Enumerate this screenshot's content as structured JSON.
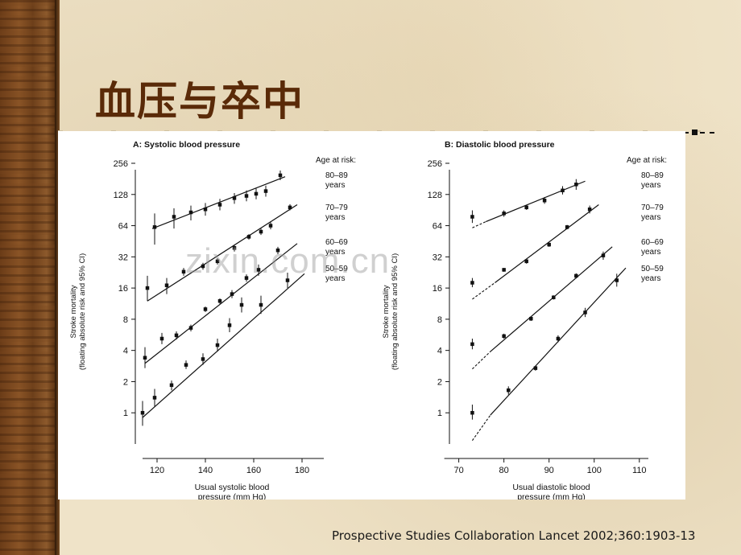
{
  "slide": {
    "title": "血压与卒中",
    "citation": "Prospective Studies Collaboration Lancet 2002;360:1903-13",
    "watermark": "zixin.com.cn",
    "colors": {
      "title": "#5a2a08",
      "background": "#efe3c8",
      "wood": "#7a4a20"
    }
  },
  "chart_data": [
    {
      "type": "scatter",
      "title": "A: Systolic blood pressure",
      "xlabel": "Usual systolic blood pressure (mm Hg)",
      "xlabel_lines": [
        "Usual systolic blood",
        "pressure (mm Hg)"
      ],
      "ylabel_lines": [
        "Stroke mortality",
        "(floating absolute risk and 95% CI)"
      ],
      "y_scale": "log2",
      "xlim": [
        113,
        189
      ],
      "ylim": [
        0.5,
        256
      ],
      "xticks": [
        120,
        140,
        160,
        180
      ],
      "yticks": [
        1,
        2,
        4,
        8,
        16,
        32,
        64,
        128,
        256
      ],
      "legend_title": "Age at risk:",
      "series": [
        {
          "name": "80–89 years",
          "label_lines": [
            "80–89",
            "years"
          ],
          "points": [
            {
              "x": 119,
              "y": 62,
              "lo": 42,
              "hi": 84
            },
            {
              "x": 127,
              "y": 78,
              "lo": 60,
              "hi": 94
            },
            {
              "x": 134,
              "y": 86,
              "lo": 72,
              "hi": 100
            },
            {
              "x": 140,
              "y": 92,
              "lo": 80,
              "hi": 106
            },
            {
              "x": 146,
              "y": 102,
              "lo": 90,
              "hi": 116
            },
            {
              "x": 152,
              "y": 118,
              "lo": 104,
              "hi": 132
            },
            {
              "x": 157,
              "y": 124,
              "lo": 110,
              "hi": 140
            },
            {
              "x": 161,
              "y": 130,
              "lo": 115,
              "hi": 146
            },
            {
              "x": 165,
              "y": 138,
              "lo": 122,
              "hi": 156
            },
            {
              "x": 171,
              "y": 196,
              "lo": 176,
              "hi": 218
            }
          ],
          "fit": {
            "x1": 118,
            "y1": 60,
            "x2": 173,
            "y2": 190
          }
        },
        {
          "name": "70–79 years",
          "label_lines": [
            "70–79",
            "years"
          ],
          "points": [
            {
              "x": 116,
              "y": 16,
              "lo": 12,
              "hi": 21
            },
            {
              "x": 124,
              "y": 17,
              "lo": 14,
              "hi": 20
            },
            {
              "x": 131,
              "y": 23,
              "lo": 21,
              "hi": 25
            },
            {
              "x": 139,
              "y": 26,
              "lo": 24,
              "hi": 28
            },
            {
              "x": 145,
              "y": 29,
              "lo": 27,
              "hi": 31
            },
            {
              "x": 152,
              "y": 39,
              "lo": 36,
              "hi": 42
            },
            {
              "x": 158,
              "y": 50,
              "lo": 47,
              "hi": 53
            },
            {
              "x": 163,
              "y": 56,
              "lo": 52,
              "hi": 60
            },
            {
              "x": 167,
              "y": 64,
              "lo": 59,
              "hi": 69
            },
            {
              "x": 175,
              "y": 96,
              "lo": 90,
              "hi": 103
            }
          ],
          "fit": {
            "x1": 116,
            "y1": 12,
            "x2": 178,
            "y2": 102
          }
        },
        {
          "name": "60–69 years",
          "label_lines": [
            "60–69",
            "years"
          ],
          "points": [
            {
              "x": 115,
              "y": 3.4,
              "lo": 2.7,
              "hi": 4.3
            },
            {
              "x": 122,
              "y": 5.2,
              "lo": 4.6,
              "hi": 5.9
            },
            {
              "x": 128,
              "y": 5.6,
              "lo": 5.1,
              "hi": 6.1
            },
            {
              "x": 134,
              "y": 6.6,
              "lo": 6.1,
              "hi": 7.1
            },
            {
              "x": 140,
              "y": 10,
              "lo": 9.4,
              "hi": 10.6
            },
            {
              "x": 146,
              "y": 12,
              "lo": 11.3,
              "hi": 12.7
            },
            {
              "x": 151,
              "y": 14,
              "lo": 12.8,
              "hi": 15.3
            },
            {
              "x": 157,
              "y": 20,
              "lo": 18.4,
              "hi": 21.7
            },
            {
              "x": 162,
              "y": 24,
              "lo": 21,
              "hi": 27
            },
            {
              "x": 170,
              "y": 37,
              "lo": 34,
              "hi": 40
            }
          ],
          "fit": {
            "x1": 115,
            "y1": 3,
            "x2": 178,
            "y2": 43
          }
        },
        {
          "name": "50–59 years",
          "label_lines": [
            "50–59",
            "years"
          ],
          "points": [
            {
              "x": 114,
              "y": 1.0,
              "lo": 0.75,
              "hi": 1.3
            },
            {
              "x": 119,
              "y": 1.4,
              "lo": 1.15,
              "hi": 1.7
            },
            {
              "x": 126,
              "y": 1.85,
              "lo": 1.65,
              "hi": 2.05
            },
            {
              "x": 132,
              "y": 2.9,
              "lo": 2.65,
              "hi": 3.2
            },
            {
              "x": 139,
              "y": 3.3,
              "lo": 2.9,
              "hi": 3.75
            },
            {
              "x": 145,
              "y": 4.5,
              "lo": 3.9,
              "hi": 5.2
            },
            {
              "x": 150,
              "y": 7,
              "lo": 6.0,
              "hi": 8.2
            },
            {
              "x": 155,
              "y": 11,
              "lo": 9.3,
              "hi": 13
            },
            {
              "x": 163,
              "y": 11,
              "lo": 9.0,
              "hi": 13.5
            },
            {
              "x": 174,
              "y": 19,
              "lo": 16,
              "hi": 22.5
            }
          ],
          "fit": {
            "x1": 114,
            "y1": 0.9,
            "x2": 181,
            "y2": 22
          }
        }
      ]
    },
    {
      "type": "scatter",
      "title": "B: Diastolic blood pressure",
      "xlabel": "Usual diastolic blood pressure (mm Hg)",
      "xlabel_lines": [
        "Usual diastolic blood",
        "pressure (mm Hg)"
      ],
      "ylabel_lines": [
        "Stroke mortality",
        "(floating absolute risk and 95% CI)"
      ],
      "y_scale": "log2",
      "xlim": [
        69,
        112
      ],
      "ylim": [
        0.5,
        256
      ],
      "xticks": [
        70,
        80,
        90,
        100,
        110
      ],
      "yticks": [
        1,
        2,
        4,
        8,
        16,
        32,
        64,
        128,
        256
      ],
      "legend_title": "Age at risk:",
      "series": [
        {
          "name": "80–89 years",
          "label_lines": [
            "80–89",
            "years"
          ],
          "points": [
            {
              "x": 73,
              "y": 78,
              "lo": 68,
              "hi": 90
            },
            {
              "x": 80,
              "y": 84,
              "lo": 78,
              "hi": 90
            },
            {
              "x": 85,
              "y": 96,
              "lo": 91,
              "hi": 101
            },
            {
              "x": 89,
              "y": 112,
              "lo": 104,
              "hi": 121
            },
            {
              "x": 93,
              "y": 140,
              "lo": 128,
              "hi": 154
            },
            {
              "x": 96,
              "y": 160,
              "lo": 142,
              "hi": 180
            }
          ],
          "fit": {
            "x1": 76,
            "y1": 70,
            "x2": 98,
            "y2": 172
          },
          "dash_to": {
            "x": 73,
            "y": 61
          }
        },
        {
          "name": "70–79 years",
          "label_lines": [
            "70–79",
            "years"
          ],
          "points": [
            {
              "x": 73,
              "y": 18,
              "lo": 16.3,
              "hi": 20
            },
            {
              "x": 80,
              "y": 24,
              "lo": 23,
              "hi": 25
            },
            {
              "x": 85,
              "y": 29,
              "lo": 27.5,
              "hi": 30.5
            },
            {
              "x": 90,
              "y": 42,
              "lo": 40,
              "hi": 44
            },
            {
              "x": 94,
              "y": 62,
              "lo": 59,
              "hi": 65
            },
            {
              "x": 99,
              "y": 92,
              "lo": 84,
              "hi": 100
            }
          ],
          "fit": {
            "x1": 78,
            "y1": 18,
            "x2": 101,
            "y2": 102
          },
          "dash_to": {
            "x": 73,
            "y": 12.5
          }
        },
        {
          "name": "60–69 years",
          "label_lines": [
            "60–69",
            "years"
          ],
          "points": [
            {
              "x": 73,
              "y": 4.6,
              "lo": 4.1,
              "hi": 5.2
            },
            {
              "x": 80,
              "y": 5.5,
              "lo": 5.2,
              "hi": 5.8
            },
            {
              "x": 86,
              "y": 8.1,
              "lo": 7.7,
              "hi": 8.5
            },
            {
              "x": 91,
              "y": 13,
              "lo": 12.4,
              "hi": 13.6
            },
            {
              "x": 96,
              "y": 21,
              "lo": 19.8,
              "hi": 22.2
            },
            {
              "x": 102,
              "y": 33,
              "lo": 30,
              "hi": 36
            }
          ],
          "fit": {
            "x1": 77,
            "y1": 3.9,
            "x2": 104,
            "y2": 40
          },
          "dash_to": {
            "x": 73,
            "y": 2.65
          }
        },
        {
          "name": "50–59 years",
          "label_lines": [
            "50–59",
            "years"
          ],
          "points": [
            {
              "x": 73,
              "y": 1.0,
              "lo": 0.86,
              "hi": 1.2
            },
            {
              "x": 81,
              "y": 1.65,
              "lo": 1.5,
              "hi": 1.8
            },
            {
              "x": 87,
              "y": 2.7,
              "lo": 2.55,
              "hi": 2.85
            },
            {
              "x": 92,
              "y": 5.2,
              "lo": 4.8,
              "hi": 5.6
            },
            {
              "x": 98,
              "y": 9.3,
              "lo": 8.4,
              "hi": 10.3
            },
            {
              "x": 105,
              "y": 19,
              "lo": 16.5,
              "hi": 22
            }
          ],
          "fit": {
            "x1": 77,
            "y1": 0.95,
            "x2": 107,
            "y2": 25
          },
          "dash_to": {
            "x": 73,
            "y": 0.54
          }
        }
      ]
    }
  ]
}
